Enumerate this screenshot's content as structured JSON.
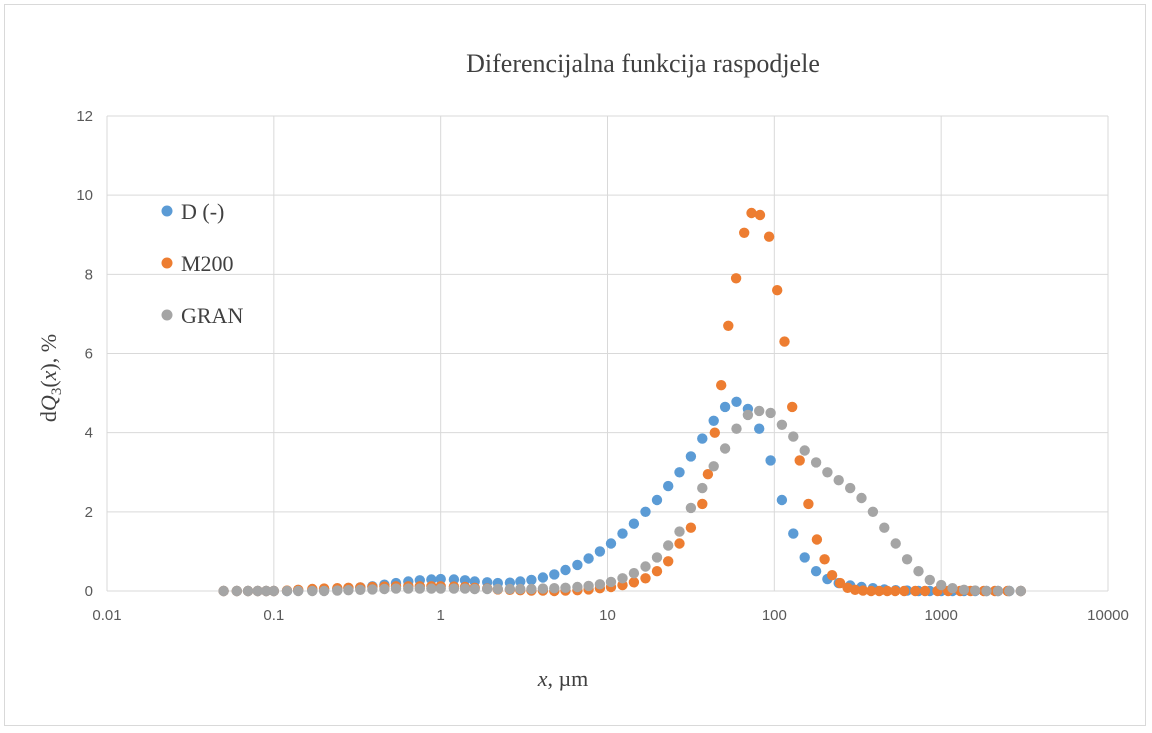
{
  "chart_data": {
    "type": "scatter",
    "title": "Diferencijalna funkcija raspodjele",
    "xlabel_italic": "x",
    "xlabel_rest": ", µm",
    "ylabel_prefix": "d",
    "ylabel_q": "Q",
    "ylabel_sub": "3",
    "ylabel_x": "x",
    "ylabel_suffix": ", %",
    "xscale": "log",
    "xlim": [
      0.01,
      10000
    ],
    "ylim": [
      0,
      12
    ],
    "xticks": [
      "0.01",
      "0.1",
      "1",
      "10",
      "100",
      "1000",
      "10000"
    ],
    "yticks": [
      "0",
      "2",
      "4",
      "6",
      "8",
      "10",
      "12"
    ],
    "grid": true,
    "legend_position": "left-inside",
    "series": [
      {
        "name": "D (-)",
        "color": "#5b9bd5",
        "points": [
          [
            0.05,
            0.0
          ],
          [
            0.06,
            0.0
          ],
          [
            0.07,
            0.0
          ],
          [
            0.08,
            0.0
          ],
          [
            0.09,
            0.0
          ],
          [
            0.1,
            0.0
          ],
          [
            0.12,
            0.0
          ],
          [
            0.14,
            0.01
          ],
          [
            0.17,
            0.02
          ],
          [
            0.2,
            0.03
          ],
          [
            0.24,
            0.05
          ],
          [
            0.28,
            0.07
          ],
          [
            0.33,
            0.09
          ],
          [
            0.39,
            0.12
          ],
          [
            0.46,
            0.16
          ],
          [
            0.54,
            0.2
          ],
          [
            0.64,
            0.24
          ],
          [
            0.75,
            0.27
          ],
          [
            0.88,
            0.29
          ],
          [
            1.0,
            0.3
          ],
          [
            1.2,
            0.29
          ],
          [
            1.4,
            0.27
          ],
          [
            1.6,
            0.24
          ],
          [
            1.9,
            0.22
          ],
          [
            2.2,
            0.2
          ],
          [
            2.6,
            0.21
          ],
          [
            3.0,
            0.24
          ],
          [
            3.5,
            0.28
          ],
          [
            4.1,
            0.34
          ],
          [
            4.8,
            0.42
          ],
          [
            5.6,
            0.53
          ],
          [
            6.6,
            0.66
          ],
          [
            7.7,
            0.82
          ],
          [
            9.0,
            1.0
          ],
          [
            10.5,
            1.2
          ],
          [
            12.3,
            1.45
          ],
          [
            14.4,
            1.7
          ],
          [
            16.9,
            2.0
          ],
          [
            19.8,
            2.3
          ],
          [
            23.1,
            2.65
          ],
          [
            27.0,
            3.0
          ],
          [
            31.6,
            3.4
          ],
          [
            37.0,
            3.85
          ],
          [
            43.3,
            4.3
          ],
          [
            50.7,
            4.65
          ],
          [
            59.3,
            4.78
          ],
          [
            69.4,
            4.6
          ],
          [
            81.2,
            4.1
          ],
          [
            95.0,
            3.3
          ],
          [
            111,
            2.3
          ],
          [
            130,
            1.45
          ],
          [
            152,
            0.85
          ],
          [
            178,
            0.5
          ],
          [
            208,
            0.3
          ],
          [
            243,
            0.2
          ],
          [
            285,
            0.14
          ],
          [
            333,
            0.1
          ],
          [
            390,
            0.07
          ],
          [
            456,
            0.04
          ],
          [
            534,
            0.02
          ],
          [
            625,
            0.01
          ],
          [
            731,
            0.0
          ],
          [
            855,
            0.0
          ],
          [
            1000,
            0.0
          ],
          [
            1170,
            0.0
          ],
          [
            1370,
            0.0
          ],
          [
            1600,
            0.0
          ],
          [
            1870,
            0.0
          ],
          [
            2190,
            0.0
          ],
          [
            2560,
            0.0
          ],
          [
            3000,
            0.0
          ]
        ]
      },
      {
        "name": "M200",
        "color": "#ed7d31",
        "points": [
          [
            0.05,
            0.0
          ],
          [
            0.06,
            0.0
          ],
          [
            0.07,
            0.0
          ],
          [
            0.08,
            0.0
          ],
          [
            0.09,
            0.0
          ],
          [
            0.1,
            0.0
          ],
          [
            0.12,
            0.01
          ],
          [
            0.14,
            0.03
          ],
          [
            0.17,
            0.05
          ],
          [
            0.2,
            0.06
          ],
          [
            0.24,
            0.07
          ],
          [
            0.28,
            0.08
          ],
          [
            0.33,
            0.09
          ],
          [
            0.39,
            0.1
          ],
          [
            0.46,
            0.11
          ],
          [
            0.54,
            0.12
          ],
          [
            0.64,
            0.12
          ],
          [
            0.75,
            0.12
          ],
          [
            0.88,
            0.12
          ],
          [
            1.0,
            0.12
          ],
          [
            1.2,
            0.11
          ],
          [
            1.4,
            0.1
          ],
          [
            1.6,
            0.08
          ],
          [
            1.9,
            0.06
          ],
          [
            2.2,
            0.04
          ],
          [
            2.6,
            0.03
          ],
          [
            3.0,
            0.02
          ],
          [
            3.5,
            0.01
          ],
          [
            4.1,
            0.01
          ],
          [
            4.8,
            0.0
          ],
          [
            5.6,
            0.01
          ],
          [
            6.6,
            0.02
          ],
          [
            7.7,
            0.04
          ],
          [
            9.0,
            0.07
          ],
          [
            10.5,
            0.1
          ],
          [
            12.3,
            0.15
          ],
          [
            14.4,
            0.22
          ],
          [
            16.9,
            0.32
          ],
          [
            19.8,
            0.5
          ],
          [
            23.1,
            0.75
          ],
          [
            27.0,
            1.2
          ],
          [
            31.6,
            1.6
          ],
          [
            37.0,
            2.2
          ],
          [
            40.0,
            2.95
          ],
          [
            44.0,
            4.0
          ],
          [
            48.0,
            5.2
          ],
          [
            53.0,
            6.7
          ],
          [
            59.0,
            7.9
          ],
          [
            66.0,
            9.05
          ],
          [
            73.0,
            9.55
          ],
          [
            82.0,
            9.5
          ],
          [
            93.0,
            8.95
          ],
          [
            104.0,
            7.6
          ],
          [
            115.0,
            6.3
          ],
          [
            128.0,
            4.65
          ],
          [
            142.0,
            3.3
          ],
          [
            160.0,
            2.2
          ],
          [
            180.0,
            1.3
          ],
          [
            200.0,
            0.8
          ],
          [
            222.0,
            0.4
          ],
          [
            248.0,
            0.2
          ],
          [
            275.0,
            0.08
          ],
          [
            305.0,
            0.03
          ],
          [
            340.0,
            0.01
          ],
          [
            380.0,
            0.0
          ],
          [
            425.0,
            0.0
          ],
          [
            475.0,
            0.0
          ],
          [
            530.0,
            0.0
          ],
          [
            600.0,
            0.0
          ],
          [
            700.0,
            0.0
          ],
          [
            800.0,
            0.0
          ],
          [
            950.0,
            0.0
          ],
          [
            1100.0,
            0.0
          ],
          [
            1300.0,
            0.0
          ],
          [
            1500.0,
            0.0
          ],
          [
            1800.0,
            0.0
          ],
          [
            2100.0,
            0.0
          ],
          [
            2500.0,
            0.0
          ],
          [
            3000.0,
            0.0
          ]
        ]
      },
      {
        "name": "GRAN",
        "color": "#a5a5a5",
        "points": [
          [
            0.05,
            0.0
          ],
          [
            0.06,
            0.0
          ],
          [
            0.07,
            0.0
          ],
          [
            0.08,
            0.0
          ],
          [
            0.09,
            0.0
          ],
          [
            0.1,
            0.0
          ],
          [
            0.12,
            0.0
          ],
          [
            0.14,
            0.0
          ],
          [
            0.17,
            0.0
          ],
          [
            0.2,
            0.0
          ],
          [
            0.24,
            0.01
          ],
          [
            0.28,
            0.02
          ],
          [
            0.33,
            0.03
          ],
          [
            0.39,
            0.04
          ],
          [
            0.46,
            0.05
          ],
          [
            0.54,
            0.06
          ],
          [
            0.64,
            0.06
          ],
          [
            0.75,
            0.06
          ],
          [
            0.88,
            0.06
          ],
          [
            1.0,
            0.06
          ],
          [
            1.2,
            0.06
          ],
          [
            1.4,
            0.06
          ],
          [
            1.6,
            0.05
          ],
          [
            1.9,
            0.05
          ],
          [
            2.2,
            0.05
          ],
          [
            2.6,
            0.05
          ],
          [
            3.0,
            0.05
          ],
          [
            3.5,
            0.05
          ],
          [
            4.1,
            0.06
          ],
          [
            4.8,
            0.07
          ],
          [
            5.6,
            0.08
          ],
          [
            6.6,
            0.1
          ],
          [
            7.7,
            0.13
          ],
          [
            9.0,
            0.17
          ],
          [
            10.5,
            0.23
          ],
          [
            12.3,
            0.32
          ],
          [
            14.4,
            0.45
          ],
          [
            16.9,
            0.62
          ],
          [
            19.8,
            0.85
          ],
          [
            23.1,
            1.15
          ],
          [
            27.0,
            1.5
          ],
          [
            31.6,
            2.1
          ],
          [
            37.0,
            2.6
          ],
          [
            43.3,
            3.15
          ],
          [
            50.7,
            3.6
          ],
          [
            59.3,
            4.1
          ],
          [
            69.4,
            4.45
          ],
          [
            81.2,
            4.55
          ],
          [
            95.0,
            4.5
          ],
          [
            111,
            4.2
          ],
          [
            130,
            3.9
          ],
          [
            152,
            3.55
          ],
          [
            178,
            3.25
          ],
          [
            208,
            3.0
          ],
          [
            243,
            2.8
          ],
          [
            285,
            2.6
          ],
          [
            333,
            2.35
          ],
          [
            390,
            2.0
          ],
          [
            456,
            1.6
          ],
          [
            534,
            1.2
          ],
          [
            625,
            0.8
          ],
          [
            731,
            0.5
          ],
          [
            855,
            0.28
          ],
          [
            1000,
            0.15
          ],
          [
            1170,
            0.07
          ],
          [
            1370,
            0.03
          ],
          [
            1600,
            0.01
          ],
          [
            1870,
            0.0
          ],
          [
            2190,
            0.0
          ],
          [
            2560,
            0.0
          ],
          [
            3000,
            0.0
          ]
        ]
      }
    ]
  }
}
